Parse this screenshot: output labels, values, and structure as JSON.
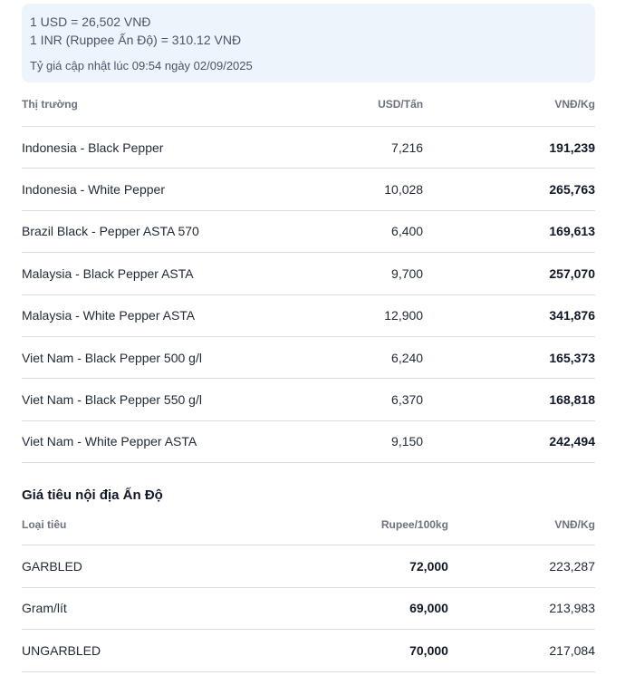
{
  "rates": {
    "usd": "1 USD = 26,502 VNĐ",
    "inr": "1 INR (Ruppee Ấn Độ) = 310.12 VNĐ",
    "updated": "Tỷ giá cập nhật lúc 09:54 ngày 02/09/2025"
  },
  "world_table": {
    "headers": [
      "Thị trường",
      "USD/Tấn",
      "VNĐ/Kg"
    ],
    "rows": [
      {
        "market": "Indonesia - Black Pepper",
        "usd": "7,216",
        "vnd": "191,239"
      },
      {
        "market": "Indonesia - White Pepper",
        "usd": "10,028",
        "vnd": "265,763"
      },
      {
        "market": "Brazil Black - Pepper ASTA 570",
        "usd": "6,400",
        "vnd": "169,613"
      },
      {
        "market": "Malaysia - Black Pepper ASTA",
        "usd": "9,700",
        "vnd": "257,070"
      },
      {
        "market": "Malaysia - White Pepper ASTA",
        "usd": "12,900",
        "vnd": "341,876"
      },
      {
        "market": "Viet Nam - Black Pepper 500 g/l",
        "usd": "6,240",
        "vnd": "165,373"
      },
      {
        "market": "Viet Nam - Black Pepper 550 g/l",
        "usd": "6,370",
        "vnd": "168,818"
      },
      {
        "market": "Viet Nam - White Pepper ASTA",
        "usd": "9,150",
        "vnd": "242,494"
      }
    ]
  },
  "india_section": {
    "title": "Giá tiêu nội địa Ấn Độ",
    "headers": [
      "Loại tiêu",
      "Rupee/100kg",
      "VNĐ/Kg"
    ],
    "rows": [
      {
        "type": "GARBLED",
        "rupee": "72,000",
        "vnd": "223,287"
      },
      {
        "type": "Gram/lít",
        "rupee": "69,000",
        "vnd": "213,983"
      },
      {
        "type": "UNGARBLED",
        "rupee": "70,000",
        "vnd": "217,084"
      }
    ]
  }
}
